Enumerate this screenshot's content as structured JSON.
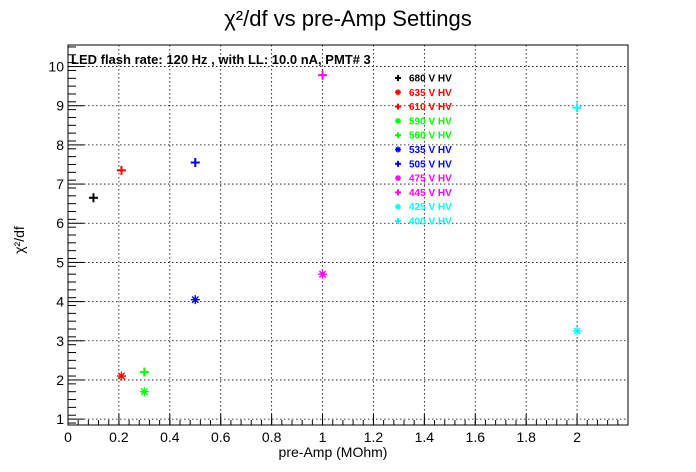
{
  "chart_data": {
    "type": "scatter",
    "title": "χ²/df vs pre-Amp Settings",
    "annotation": "LED flash rate: 120 Hz , with LL: 10.0 nA, PMT# 3",
    "xlabel": "pre-Amp (MOhm)",
    "ylabel": "χ²/df",
    "xlim": [
      0,
      2.2
    ],
    "ylim": [
      0.85,
      10.55
    ],
    "x_ticks": [
      0,
      0.2,
      0.4,
      0.6,
      0.8,
      1,
      1.2,
      1.4,
      1.6,
      1.8,
      2
    ],
    "x_tick_labels": [
      "0",
      "0.2",
      "0.4",
      "0.6",
      "0.8",
      "1",
      "1.2",
      "1.4",
      "1.6",
      "1.8",
      "2"
    ],
    "y_ticks": [
      1,
      2,
      3,
      4,
      5,
      6,
      7,
      8,
      9,
      10
    ],
    "y_tick_labels": [
      "1",
      "2",
      "3",
      "4",
      "5",
      "6",
      "7",
      "8",
      "9",
      "10"
    ],
    "grid": true,
    "legend_position": "top-right",
    "series": [
      {
        "name": "680 V HV",
        "color": "#000000",
        "marker": "plus",
        "points": [
          [
            0.1,
            6.65
          ]
        ]
      },
      {
        "name": "635 V HV",
        "color": "#ff0000",
        "marker": "star",
        "points": [
          [
            0.21,
            2.1
          ]
        ]
      },
      {
        "name": "610 V HV",
        "color": "#ff0000",
        "marker": "plus",
        "points": [
          [
            0.21,
            7.35
          ]
        ]
      },
      {
        "name": "590 V HV",
        "color": "#00ff00",
        "marker": "star",
        "points": [
          [
            0.3,
            1.7
          ]
        ]
      },
      {
        "name": "560 V HV",
        "color": "#00ff00",
        "marker": "plus",
        "points": [
          [
            0.3,
            2.2
          ]
        ]
      },
      {
        "name": "535 V HV",
        "color": "#0000ff",
        "marker": "star",
        "points": [
          [
            0.5,
            4.05
          ]
        ]
      },
      {
        "name": "505 V HV",
        "color": "#0000ff",
        "marker": "plus",
        "points": [
          [
            0.5,
            7.55
          ]
        ]
      },
      {
        "name": "475 V HV",
        "color": "#ff00ff",
        "marker": "star",
        "points": [
          [
            1.0,
            4.7
          ]
        ]
      },
      {
        "name": "445 V HV",
        "color": "#ff00ff",
        "marker": "plus",
        "points": [
          [
            1.0,
            9.78
          ]
        ]
      },
      {
        "name": "425 V HV",
        "color": "#00ffff",
        "marker": "star",
        "points": [
          [
            2.0,
            3.25
          ]
        ]
      },
      {
        "name": "400 V HV",
        "color": "#00ffff",
        "marker": "plus",
        "points": [
          [
            2.0,
            8.95
          ]
        ]
      }
    ]
  }
}
